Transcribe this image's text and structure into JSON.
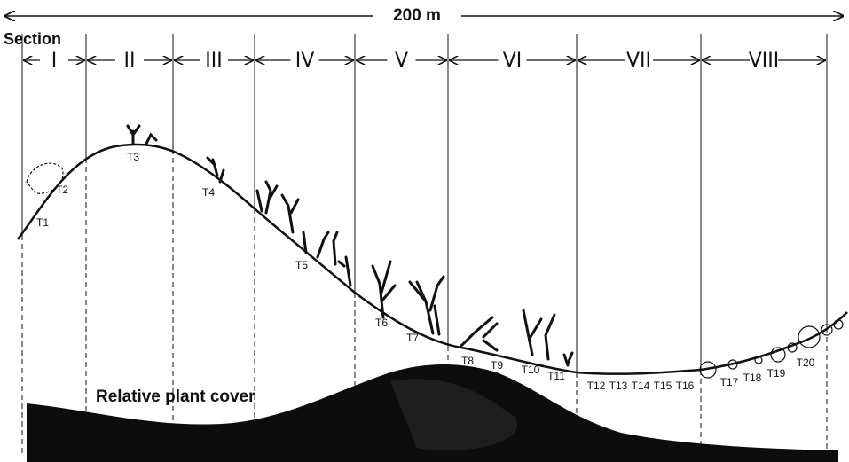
{
  "scale_label": "200 m",
  "section_heading": "Section",
  "sections": [
    "I",
    "II",
    "III",
    "IV",
    "V",
    "VI",
    "VII",
    "VIII"
  ],
  "transects": [
    "T1",
    "T2",
    "T3",
    "T4",
    "T5",
    "T6",
    "T7",
    "T8",
    "T9",
    "T10",
    "T11",
    "T12",
    "T13",
    "T14",
    "T15",
    "T16",
    "T17",
    "T18",
    "T19",
    "T20"
  ],
  "plant_cover_label": "Relative plant cover"
}
